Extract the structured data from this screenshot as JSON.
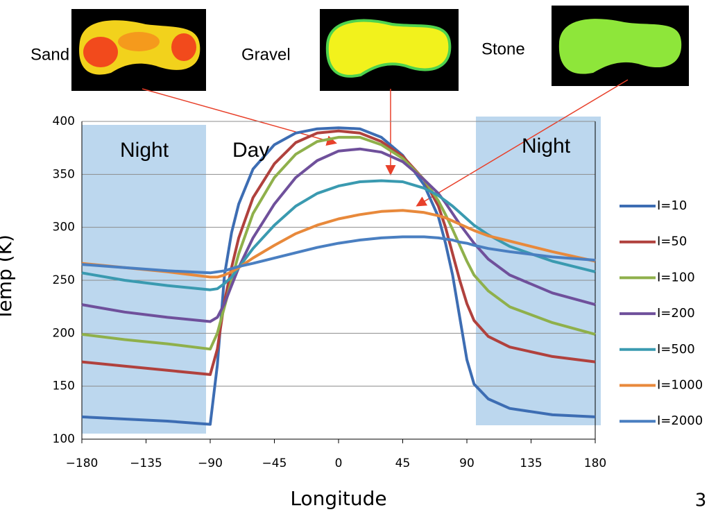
{
  "chart_data": {
    "type": "line",
    "xlabel": "Longitude",
    "ylabel": "Temp (K)",
    "x": [
      -180,
      -150,
      -120,
      -90,
      -85,
      -80,
      -75,
      -70,
      -60,
      -45,
      -30,
      -15,
      0,
      15,
      30,
      45,
      60,
      70,
      75,
      80,
      85,
      90,
      95,
      105,
      120,
      150,
      180
    ],
    "series": [
      {
        "name": "I=10",
        "color": "#3d6db3",
        "values": [
          121,
          119,
          117,
          114,
          170,
          255,
          295,
          322,
          355,
          378,
          389,
          393,
          394,
          393,
          385,
          368,
          340,
          310,
          285,
          255,
          215,
          175,
          152,
          138,
          129,
          123,
          121
        ]
      },
      {
        "name": "I=50",
        "color": "#b0413d",
        "values": [
          173,
          169,
          165,
          161,
          185,
          230,
          262,
          290,
          328,
          360,
          380,
          389,
          391,
          389,
          381,
          367,
          345,
          320,
          300,
          275,
          250,
          228,
          212,
          197,
          187,
          178,
          173
        ]
      },
      {
        "name": "I=100",
        "color": "#8fb04b",
        "values": [
          199,
          194,
          190,
          185,
          200,
          225,
          250,
          275,
          313,
          347,
          369,
          381,
          385,
          385,
          378,
          365,
          345,
          325,
          312,
          298,
          283,
          268,
          255,
          240,
          225,
          210,
          199
        ]
      },
      {
        "name": "I=200",
        "color": "#6f509b",
        "values": [
          227,
          220,
          215,
          211,
          215,
          228,
          245,
          262,
          290,
          322,
          347,
          363,
          372,
          374,
          371,
          362,
          345,
          332,
          323,
          313,
          303,
          294,
          285,
          270,
          255,
          238,
          227
        ]
      },
      {
        "name": "I=500",
        "color": "#3a9ab0",
        "values": [
          257,
          250,
          245,
          241,
          242,
          247,
          253,
          262,
          280,
          302,
          320,
          332,
          339,
          343,
          344,
          343,
          337,
          330,
          325,
          320,
          314,
          308,
          302,
          293,
          282,
          268,
          258
        ]
      },
      {
        "name": "I=1000",
        "color": "#e8893b",
        "values": [
          266,
          262,
          258,
          253,
          253,
          255,
          258,
          262,
          271,
          283,
          294,
          302,
          308,
          312,
          315,
          316,
          314,
          311,
          309,
          306,
          303,
          300,
          297,
          292,
          287,
          277,
          268
        ]
      },
      {
        "name": "I=2000",
        "color": "#4a7fc1",
        "values": [
          265,
          262,
          259,
          257,
          258,
          259,
          261,
          263,
          266,
          271,
          276,
          281,
          285,
          288,
          290,
          291,
          291,
          290,
          289,
          288,
          286,
          285,
          283,
          280,
          277,
          272,
          269
        ]
      }
    ],
    "xlim": [
      -180,
      180
    ],
    "ylim": [
      100,
      400
    ],
    "xticks": [
      {
        "value": -180,
        "label": "−180"
      },
      {
        "value": -135,
        "label": "−135"
      },
      {
        "value": -90,
        "label": "−90"
      },
      {
        "value": -45,
        "label": "−45"
      },
      0,
      45,
      90,
      135,
      180
    ],
    "yticks": [
      100,
      150,
      200,
      250,
      300,
      350,
      400
    ],
    "grid": true,
    "legend": "right",
    "annotations": [
      "Sand",
      "Gravel",
      "Stone",
      "Night",
      "Day",
      "Night"
    ],
    "page_number": "3"
  }
}
